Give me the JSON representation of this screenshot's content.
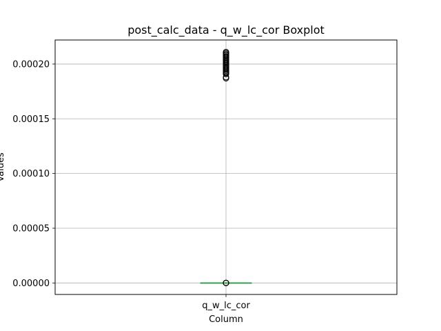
{
  "chart_data": {
    "type": "box",
    "title": "post_calc_data - q_w_lc_cor Boxplot",
    "xlabel": "Column",
    "ylabel": "Values",
    "categories": [
      "q_w_lc_cor"
    ],
    "ylim": [
      -1.05e-05,
      0.000222
    ],
    "yticks": [
      0.0,
      5e-05,
      0.0001,
      0.00015,
      0.0002
    ],
    "ytick_labels": [
      "0.00000",
      "0.00005",
      "0.00010",
      "0.00015",
      "0.00020"
    ],
    "grid": true,
    "box": {
      "q1": 0.0,
      "median": 0.0,
      "q3": 0.0,
      "whisker_low": 0.0,
      "whisker_high": 0.0
    },
    "outliers": [
      0.0,
      0.0,
      0.0,
      0.000187,
      0.000188,
      0.000191,
      0.000192,
      0.000193,
      0.000194,
      0.000195,
      0.000196,
      0.000197,
      0.000198,
      0.000199,
      0.0002,
      0.000201,
      0.000202,
      0.000203,
      0.000204,
      0.000205,
      0.000206,
      0.000207,
      0.000208,
      0.000209,
      0.00021,
      0.000211
    ],
    "colors": {
      "median": "#2ca02c",
      "outlier_edge": "#000000",
      "grid": "#b0b0b0",
      "box": "#1f77b4"
    }
  }
}
